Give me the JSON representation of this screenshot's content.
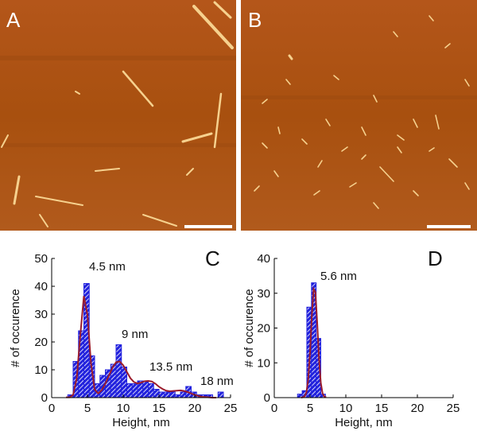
{
  "images": [
    {
      "label": "A"
    },
    {
      "label": "B"
    }
  ],
  "chart_data": [
    {
      "type": "histogram",
      "panel_label": "C",
      "bins": [
        2.25,
        3,
        3.75,
        4.5,
        5.25,
        6,
        6.75,
        7.5,
        8.25,
        9,
        9.75,
        10.5,
        11.25,
        12,
        12.75,
        13.5,
        14.25,
        15,
        15.75,
        16.5,
        17.25,
        18,
        18.75,
        19.5,
        20.25,
        21,
        21.75,
        22.5,
        23.25,
        24
      ],
      "values": [
        1,
        13,
        24,
        41,
        15,
        5,
        8,
        10,
        12,
        19,
        11,
        5,
        5,
        6,
        6,
        5,
        3,
        2,
        2,
        2,
        1,
        2,
        4,
        2,
        1,
        1,
        1,
        0,
        2
      ],
      "color": "#2222dd",
      "fit": {
        "x": [
          2,
          2.5,
          3,
          3.5,
          4,
          4.5,
          5,
          5.5,
          6,
          6.5,
          7,
          7.5,
          8,
          8.5,
          9,
          9.5,
          10,
          10.5,
          11,
          11.5,
          12,
          12.5,
          13,
          13.5,
          14,
          14.5,
          15,
          15.5,
          16,
          16.5,
          17,
          17.5,
          18,
          18.5,
          19,
          19.5,
          20,
          20.5,
          21,
          21.5,
          22,
          22.5,
          23
        ],
        "values": [
          0.1,
          0.1,
          1.0,
          6.9,
          22.4,
          36.5,
          29.7,
          12.2,
          2.9,
          1.5,
          2.7,
          5.0,
          7.9,
          10.8,
          12.7,
          13.0,
          11.6,
          9.3,
          7.0,
          5.6,
          5.1,
          5.4,
          5.9,
          6.0,
          5.8,
          5.0,
          3.9,
          3.1,
          2.5,
          2.3,
          2.4,
          2.5,
          2.6,
          2.4,
          2.0,
          1.5,
          1.0,
          0.6,
          0.3,
          0.2,
          0.1,
          0.0,
          0.0
        ],
        "color": "#9b1c2c"
      },
      "xlim": [
        0,
        25
      ],
      "ylim": [
        0,
        50
      ],
      "xticks": [
        0,
        5,
        10,
        15,
        20,
        25
      ],
      "yticks": [
        0,
        10,
        20,
        30,
        40,
        50
      ],
      "x_label": "Height, nm",
      "y_label": "# of occurence",
      "annotations": [
        "4.5 nm",
        "9 nm",
        "13.5 nm",
        "18 nm"
      ]
    },
    {
      "type": "histogram",
      "panel_label": "D",
      "bins": [
        3.25,
        3.9,
        4.55,
        5.2,
        5.85,
        6.5,
        7.15
      ],
      "values": [
        1,
        2,
        26,
        33,
        17,
        1
      ],
      "color": "#2222dd",
      "fit": {
        "x": [
          3.75,
          4,
          4.25,
          4.5,
          4.75,
          5,
          5.25,
          5.5,
          5.75,
          6,
          6.25,
          6.5,
          6.75,
          7,
          7.25
        ],
        "values": [
          0.0,
          0.1,
          0.4,
          1.6,
          5.4,
          13.1,
          23.7,
          31.2,
          30.3,
          21.5,
          11.3,
          4.3,
          1.2,
          0.3,
          0.1
        ],
        "color": "#9b1c2c"
      },
      "xlim": [
        0,
        25
      ],
      "ylim": [
        0,
        40
      ],
      "xticks": [
        0,
        5,
        10,
        15,
        20,
        25
      ],
      "yticks": [
        0,
        10,
        20,
        30,
        40
      ],
      "x_label": "Height, nm",
      "y_label": "# of occurence",
      "annotations": [
        "5.6 nm"
      ]
    }
  ]
}
